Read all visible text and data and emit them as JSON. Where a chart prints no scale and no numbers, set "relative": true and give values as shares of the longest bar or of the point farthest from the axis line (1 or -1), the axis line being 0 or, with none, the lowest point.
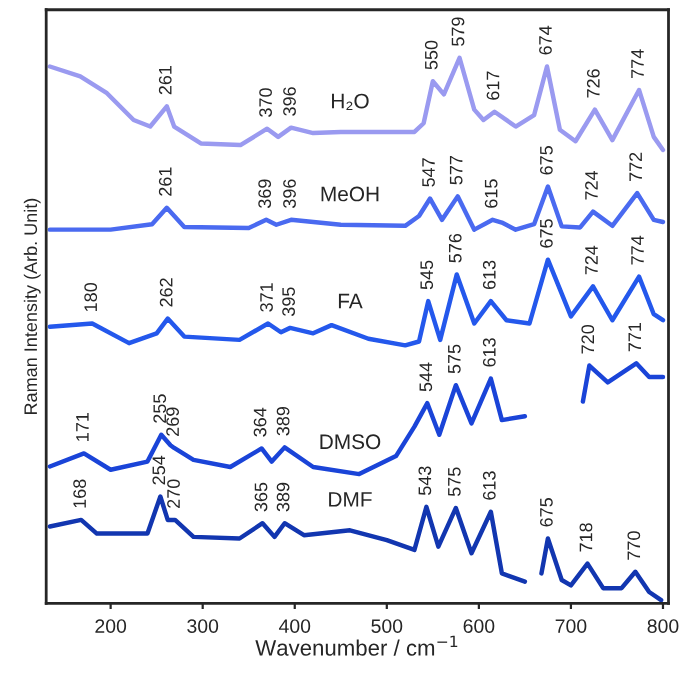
{
  "chart_data": {
    "type": "line",
    "relative": true,
    "xlabel": "Wavenumber / cm$^{−1}$",
    "ylabel": "Raman Intensity (Arb. Unit)",
    "xlim": [
      130,
      806
    ],
    "xticks": [
      200,
      300,
      400,
      500,
      600,
      700,
      800
    ],
    "series": [
      {
        "name": "H₂O",
        "color": "#9a9af0",
        "x": [
          134,
          167,
          196,
          225,
          243,
          261,
          269,
          298,
          341,
          370,
          382,
          396,
          420,
          450,
          530,
          540,
          550,
          562,
          579,
          595,
          605,
          617,
          640,
          660,
          674,
          688,
          705,
          726,
          745,
          774,
          790,
          800
        ],
        "values": [
          0.984,
          0.966,
          0.935,
          0.886,
          0.874,
          0.911,
          0.874,
          0.843,
          0.84,
          0.87,
          0.855,
          0.872,
          0.862,
          0.864,
          0.864,
          0.88,
          0.957,
          0.933,
          1,
          0.905,
          0.886,
          0.901,
          0.874,
          0.895,
          0.984,
          0.868,
          0.847,
          0.905,
          0.849,
          0.941,
          0.855,
          0.831
        ]
      },
      {
        "name": "MeOH",
        "color": "#4a6af0",
        "x": [
          134,
          200,
          245,
          261,
          280,
          350,
          369,
          380,
          396,
          450,
          520,
          535,
          547,
          560,
          577,
          595,
          615,
          625,
          640,
          660,
          675,
          690,
          710,
          724,
          745,
          772,
          790,
          800
        ],
        "values": [
          0.685,
          0.685,
          0.695,
          0.725,
          0.69,
          0.688,
          0.703,
          0.694,
          0.703,
          0.694,
          0.692,
          0.71,
          0.742,
          0.703,
          0.746,
          0.685,
          0.703,
          0.698,
          0.685,
          0.695,
          0.764,
          0.691,
          0.689,
          0.718,
          0.692,
          0.752,
          0.703,
          0.699
        ]
      },
      {
        "name": "FA",
        "color": "#2458ec",
        "x": [
          134,
          180,
          220,
          250,
          262,
          280,
          340,
          371,
          385,
          395,
          420,
          440,
          480,
          520,
          535,
          545,
          558,
          576,
          595,
          613,
          630,
          655,
          675,
          700,
          724,
          745,
          774,
          790,
          800
        ],
        "values": [
          0.507,
          0.513,
          0.477,
          0.495,
          0.522,
          0.489,
          0.483,
          0.513,
          0.497,
          0.505,
          0.495,
          0.51,
          0.485,
          0.473,
          0.48,
          0.554,
          0.483,
          0.603,
          0.513,
          0.554,
          0.519,
          0.513,
          0.63,
          0.526,
          0.581,
          0.519,
          0.599,
          0.53,
          0.519
        ]
      },
      {
        "name": "DMSO",
        "color": "#1a44d8",
        "x": [
          134,
          171,
          200,
          240,
          255,
          265,
          269,
          290,
          330,
          364,
          375,
          389,
          420,
          470,
          510,
          530,
          544,
          557,
          575,
          592,
          613,
          625,
          650,
          680,
          713,
          720,
          740,
          771,
          785,
          800
        ],
        "values": [
          0.251,
          0.275,
          0.245,
          0.26,
          0.309,
          0.29,
          0.285,
          0.263,
          0.25,
          0.284,
          0.26,
          0.286,
          0.25,
          0.237,
          0.27,
          0.324,
          0.367,
          0.309,
          0.4,
          0.33,
          0.412,
          0.336,
          0.343,
          null,
          0.37,
          0.436,
          0.405,
          0.44,
          0.415,
          0.415
        ]
      },
      {
        "name": "DMF",
        "color": "#1236b0",
        "x": [
          134,
          168,
          185,
          240,
          254,
          262,
          270,
          290,
          340,
          365,
          378,
          389,
          410,
          460,
          500,
          530,
          543,
          556,
          575,
          592,
          613,
          625,
          650,
          660,
          668,
          675,
          690,
          700,
          718,
          735,
          755,
          770,
          785,
          798
        ],
        "values": [
          0.141,
          0.153,
          0.128,
          0.128,
          0.196,
          0.153,
          0.153,
          0.122,
          0.119,
          0.147,
          0.122,
          0.147,
          0.125,
          0.134,
          0.116,
          0.098,
          0.177,
          0.104,
          0.175,
          0.092,
          0.168,
          0.055,
          0.04,
          null,
          0.055,
          0.119,
          0.043,
          0.033,
          0.073,
          0.028,
          0.028,
          0.058,
          0.021,
          0.006
        ]
      }
    ],
    "annotations": [
      {
        "text": "261",
        "x": 261,
        "y": 0.911
      },
      {
        "text": "370",
        "x": 370,
        "y": 0.87
      },
      {
        "text": "396",
        "x": 396,
        "y": 0.872
      },
      {
        "text": "550",
        "x": 550,
        "y": 0.957
      },
      {
        "text": "579",
        "x": 579,
        "y": 1
      },
      {
        "text": "617",
        "x": 617,
        "y": 0.901
      },
      {
        "text": "674",
        "x": 674,
        "y": 0.984
      },
      {
        "text": "726",
        "x": 726,
        "y": 0.905
      },
      {
        "text": "774",
        "x": 774,
        "y": 0.941
      },
      {
        "text": "261",
        "x": 261,
        "y": 0.725
      },
      {
        "text": "369",
        "x": 369,
        "y": 0.703
      },
      {
        "text": "396",
        "x": 396,
        "y": 0.703
      },
      {
        "text": "547",
        "x": 547,
        "y": 0.742
      },
      {
        "text": "577",
        "x": 577,
        "y": 0.746
      },
      {
        "text": "615",
        "x": 615,
        "y": 0.703
      },
      {
        "text": "675",
        "x": 675,
        "y": 0.764
      },
      {
        "text": "724",
        "x": 724,
        "y": 0.718
      },
      {
        "text": "772",
        "x": 772,
        "y": 0.752
      },
      {
        "text": "180",
        "x": 180,
        "y": 0.513
      },
      {
        "text": "262",
        "x": 262,
        "y": 0.522
      },
      {
        "text": "371",
        "x": 371,
        "y": 0.513
      },
      {
        "text": "395",
        "x": 395,
        "y": 0.505
      },
      {
        "text": "545",
        "x": 545,
        "y": 0.554
      },
      {
        "text": "576",
        "x": 576,
        "y": 0.603
      },
      {
        "text": "613",
        "x": 613,
        "y": 0.554
      },
      {
        "text": "675",
        "x": 675,
        "y": 0.63
      },
      {
        "text": "724",
        "x": 724,
        "y": 0.581
      },
      {
        "text": "774",
        "x": 774,
        "y": 0.599
      },
      {
        "text": "171",
        "x": 171,
        "y": 0.275
      },
      {
        "text": "255",
        "x": 255,
        "y": 0.309
      },
      {
        "text": "269",
        "x": 269,
        "y": 0.285
      },
      {
        "text": "364",
        "x": 364,
        "y": 0.284
      },
      {
        "text": "389",
        "x": 389,
        "y": 0.286
      },
      {
        "text": "544",
        "x": 544,
        "y": 0.367
      },
      {
        "text": "575",
        "x": 575,
        "y": 0.4
      },
      {
        "text": "613",
        "x": 613,
        "y": 0.412
      },
      {
        "text": "720",
        "x": 720,
        "y": 0.436
      },
      {
        "text": "771",
        "x": 771,
        "y": 0.44
      },
      {
        "text": "168",
        "x": 168,
        "y": 0.153
      },
      {
        "text": "254",
        "x": 254,
        "y": 0.196
      },
      {
        "text": "270",
        "x": 270,
        "y": 0.153
      },
      {
        "text": "365",
        "x": 365,
        "y": 0.147
      },
      {
        "text": "389",
        "x": 389,
        "y": 0.147
      },
      {
        "text": "543",
        "x": 543,
        "y": 0.177
      },
      {
        "text": "575",
        "x": 575,
        "y": 0.175
      },
      {
        "text": "613",
        "x": 613,
        "y": 0.168
      },
      {
        "text": "675",
        "x": 675,
        "y": 0.119
      },
      {
        "text": "718",
        "x": 718,
        "y": 0.073
      },
      {
        "text": "770",
        "x": 770,
        "y": 0.058
      }
    ]
  }
}
